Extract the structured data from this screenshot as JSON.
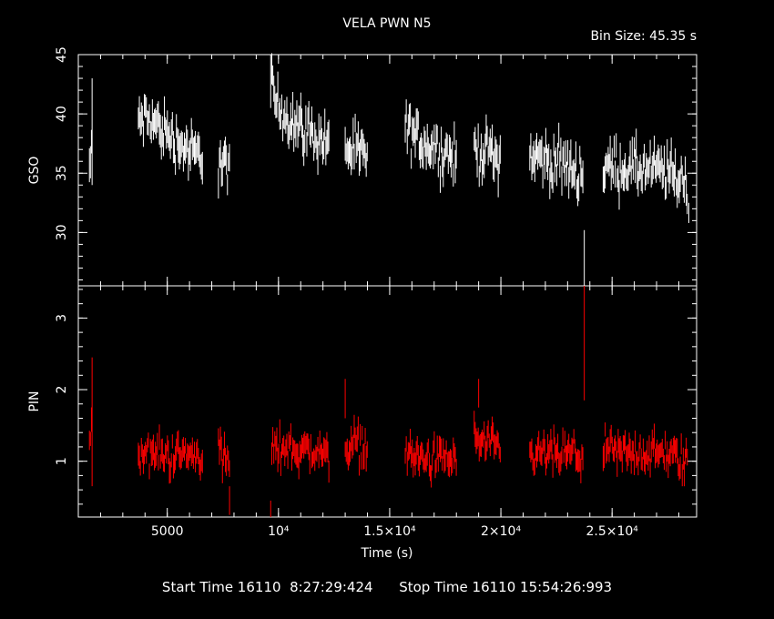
{
  "chart_data": {
    "type": "scatter",
    "title": "VELA PWN N5",
    "bin_size_label": "Bin Size: 45.35 s",
    "xlabel": "Time (s)",
    "xlim": [
      1000,
      28800
    ],
    "x_ticks": [
      {
        "value": 5000,
        "label": "5000"
      },
      {
        "value": 10000,
        "label": "10⁴"
      },
      {
        "value": 15000,
        "label": "1.5×10⁴"
      },
      {
        "value": 20000,
        "label": "2×10⁴"
      },
      {
        "value": 25000,
        "label": "2.5×10⁴"
      }
    ],
    "panels": [
      {
        "name": "gso",
        "ylabel": "GSO",
        "ylim": [
          25.5,
          45
        ],
        "y_ticks": [
          30,
          35,
          40,
          45
        ],
        "color": "#ffffff",
        "segments": [
          {
            "x": [
              1500,
              1620
            ],
            "y": [
              35.5,
              36.5
            ]
          },
          {
            "x": [
              3700,
              4200,
              4700,
              5100,
              5500,
              5900,
              6300,
              6600
            ],
            "y": [
              39.5,
              39.5,
              38.8,
              38.2,
              37.6,
              37.0,
              36.5,
              36.3
            ]
          },
          {
            "x": [
              7300,
              7500,
              7800
            ],
            "y": [
              36.0,
              35.8,
              35.6
            ]
          },
          {
            "x": [
              9700,
              10000,
              10400,
              10800,
              11200,
              11600,
              12000,
              12300
            ],
            "y": [
              42.0,
              40.5,
              39.8,
              39.2,
              38.7,
              38.2,
              37.8,
              37.5
            ]
          },
          {
            "x": [
              13000,
              13300,
              13700,
              14000
            ],
            "y": [
              37.2,
              36.8,
              36.6,
              36.5
            ]
          },
          {
            "x": [
              15700,
              16200,
              16700,
              17200,
              17700,
              18000
            ],
            "y": [
              38.5,
              38.0,
              37.5,
              37.0,
              36.5,
              36.2
            ]
          },
          {
            "x": [
              18800,
              19200,
              19600,
              20000
            ],
            "y": [
              37.0,
              36.8,
              36.6,
              36.4
            ]
          },
          {
            "x": [
              21300,
              21800,
              22300,
              22800,
              23300,
              23700
            ],
            "y": [
              36.5,
              36.3,
              36.0,
              35.7,
              35.3,
              34.8
            ]
          },
          {
            "x": [
              24600,
              25200,
              25800,
              26400,
              27000,
              27600,
              28100,
              28400
            ],
            "y": [
              35.5,
              35.5,
              35.4,
              35.3,
              35.2,
              35.0,
              34.5,
              33.8
            ]
          }
        ]
      },
      {
        "name": "pin",
        "ylabel": "PIN",
        "ylim": [
          0.22,
          3.45
        ],
        "y_ticks": [
          1,
          2,
          3
        ],
        "color": "#ff0000",
        "segments": [
          {
            "x": [
              1500,
              1620
            ],
            "y": [
              1.3,
              1.45
            ]
          },
          {
            "x": [
              3700,
              4300,
              4900,
              5500,
              6100,
              6600
            ],
            "y": [
              1.15,
              1.1,
              1.08,
              1.1,
              1.08,
              1.1
            ]
          },
          {
            "x": [
              7300,
              7500,
              7800
            ],
            "y": [
              1.2,
              1.05,
              0.95
            ]
          },
          {
            "x": [
              9700,
              10300,
              10900,
              11500,
              12000,
              12300
            ],
            "y": [
              1.15,
              1.2,
              1.15,
              1.15,
              1.1,
              1.05
            ]
          },
          {
            "x": [
              13000,
              13400,
              14000
            ],
            "y": [
              1.2,
              1.25,
              1.2
            ]
          },
          {
            "x": [
              15700,
              16300,
              16900,
              17500,
              18000
            ],
            "y": [
              1.1,
              1.05,
              1.0,
              1.05,
              1.0
            ]
          },
          {
            "x": [
              18800,
              19200,
              19600,
              20000
            ],
            "y": [
              1.35,
              1.25,
              1.2,
              1.1
            ]
          },
          {
            "x": [
              21300,
              21900,
              22500,
              23100,
              23700
            ],
            "y": [
              1.05,
              1.1,
              1.1,
              1.1,
              1.08
            ]
          },
          {
            "x": [
              24600,
              25400,
              26200,
              27000,
              27800,
              28400
            ],
            "y": [
              1.15,
              1.1,
              1.12,
              1.1,
              1.08,
              0.95
            ]
          }
        ],
        "spikes": [
          {
            "x": 1620,
            "y": [
              0.65,
              2.45
            ]
          },
          {
            "x": 7800,
            "y": 0.45
          },
          {
            "x": 9650,
            "y": 0.25
          },
          {
            "x": 13000,
            "y": [
              1.6,
              2.15
            ]
          },
          {
            "x": 19000,
            "y": 1.95
          },
          {
            "x": 23750,
            "y": [
              1.85,
              3.45
            ]
          }
        ]
      }
    ],
    "gso_spikes": [
      {
        "x": 1620,
        "y": [
          34.0,
          43.0
        ]
      },
      {
        "x": 9650,
        "y": [
          40.5,
          45.0
        ]
      },
      {
        "x": 23750,
        "y": [
          25.5,
          30.2
        ]
      },
      {
        "x": 28450,
        "y": [
          30.8,
          32.5
        ]
      }
    ]
  },
  "footer": {
    "start_label": "Start Time 16110  8:27:29:424",
    "stop_label": "Stop Time 16110 15:54:26:993"
  }
}
